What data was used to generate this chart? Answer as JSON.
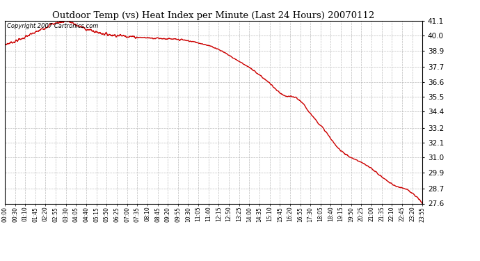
{
  "title": "Outdoor Temp (vs) Heat Index per Minute (Last 24 Hours) 20070112",
  "copyright_text": "Copyright 2007 Cartronics.com",
  "line_color": "#cc0000",
  "background_color": "#ffffff",
  "grid_color": "#bbbbbb",
  "y_min": 27.6,
  "y_max": 41.1,
  "yticks": [
    27.6,
    28.7,
    29.9,
    31.0,
    32.1,
    33.2,
    34.4,
    35.5,
    36.6,
    37.7,
    38.9,
    40.0,
    41.1
  ],
  "xtick_labels": [
    "00:00",
    "00:30",
    "01:10",
    "01:45",
    "02:20",
    "02:55",
    "03:30",
    "04:05",
    "04:40",
    "05:15",
    "05:50",
    "06:25",
    "07:00",
    "07:35",
    "08:10",
    "08:45",
    "09:20",
    "09:55",
    "10:30",
    "11:05",
    "11:40",
    "12:15",
    "12:50",
    "13:25",
    "14:00",
    "14:35",
    "15:10",
    "15:45",
    "16:20",
    "16:55",
    "17:30",
    "18:05",
    "18:40",
    "19:15",
    "19:50",
    "20:25",
    "21:00",
    "21:35",
    "22:10",
    "22:45",
    "23:20",
    "23:55"
  ],
  "knots_t": [
    0,
    30,
    60,
    90,
    120,
    160,
    200,
    210,
    225,
    250,
    280,
    310,
    340,
    370,
    410,
    450,
    490,
    530,
    570,
    610,
    650,
    690,
    730,
    760,
    790,
    830,
    870,
    910,
    940,
    960,
    980,
    1000,
    1020,
    1060,
    1100,
    1140,
    1180,
    1220,
    1260,
    1300,
    1340,
    1380,
    1420,
    1435
  ],
  "knots_v": [
    39.35,
    39.55,
    39.8,
    40.1,
    40.4,
    40.85,
    41.05,
    41.1,
    41.0,
    40.75,
    40.5,
    40.3,
    40.15,
    40.05,
    40.0,
    39.9,
    39.85,
    39.82,
    39.75,
    39.7,
    39.55,
    39.35,
    39.05,
    38.7,
    38.3,
    37.8,
    37.2,
    36.5,
    35.85,
    35.55,
    35.5,
    35.45,
    35.1,
    34.0,
    33.0,
    31.8,
    31.1,
    30.7,
    30.2,
    29.5,
    28.9,
    28.7,
    28.0,
    27.6
  ]
}
